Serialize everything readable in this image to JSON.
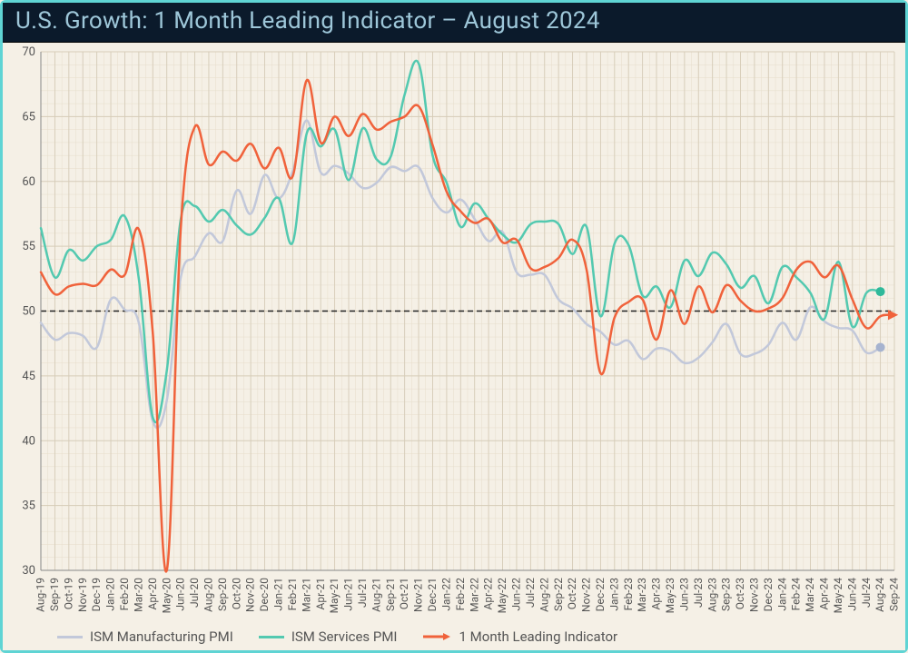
{
  "title": "U.S. Growth: 1 Month Leading Indicator – August 2024",
  "chart": {
    "type": "line",
    "background_color": "#f5f0e6",
    "frame_border_color": "#5fd4d4",
    "header_bg": "#0b1a2b",
    "header_fg": "#9ec7d9",
    "title_fontsize": 26,
    "grid_major_color": "#d6ccb8",
    "grid_minor_color": "#e6ddcb",
    "axis_color": "#888888",
    "tick_label_color": "#555555",
    "tick_fontsize_y": 13,
    "tick_fontsize_x": 12,
    "ylim": [
      30,
      70
    ],
    "ytick_step": 5,
    "reference_line": {
      "y": 50,
      "style": "dashed",
      "color": "#222222",
      "width": 1.5
    },
    "x_labels": [
      "Aug-19",
      "Sep-19",
      "Oct-19",
      "Nov-19",
      "Dec-19",
      "Jan-20",
      "Feb-20",
      "Mar-20",
      "Apr-20",
      "May-20",
      "Jun-20",
      "Jul-20",
      "Aug-20",
      "Sep-20",
      "Oct-20",
      "Nov-20",
      "Dec-20",
      "Jan-21",
      "Feb-21",
      "Mar-21",
      "Apr-21",
      "May-21",
      "Jun-21",
      "Jul-21",
      "Aug-21",
      "Sep-21",
      "Oct-21",
      "Nov-21",
      "Dec-21",
      "Jan-22",
      "Feb-22",
      "Mar-22",
      "Apr-22",
      "May-22",
      "Jun-22",
      "Jul-22",
      "Aug-22",
      "Sep-22",
      "Oct-22",
      "Nov-22",
      "Dec-22",
      "Jan-23",
      "Feb-23",
      "Mar-23",
      "Apr-23",
      "May-23",
      "Jun-23",
      "Jul-23",
      "Aug-23",
      "Sep-23",
      "Oct-23",
      "Nov-23",
      "Dec-23",
      "Jan-24",
      "Feb-24",
      "Mar-24",
      "Apr-24",
      "May-24",
      "Jun-24",
      "Jul-24",
      "Aug-24",
      "Sep-24"
    ],
    "series": [
      {
        "name": "ISM Manufacturing PMI",
        "color": "#c2c8da",
        "line_width": 2.5,
        "end_marker": {
          "shape": "circle",
          "size": 5,
          "fill": "#a6b3cf"
        },
        "values": [
          49.1,
          47.8,
          48.3,
          48.1,
          47.2,
          50.9,
          50.1,
          49.1,
          41.5,
          43.1,
          52.6,
          54.2,
          56.0,
          55.4,
          59.3,
          57.5,
          60.5,
          58.7,
          60.8,
          64.7,
          60.7,
          61.2,
          60.6,
          59.5,
          59.9,
          61.1,
          60.8,
          61.1,
          58.7,
          57.6,
          58.6,
          57.1,
          55.4,
          56.1,
          53.0,
          52.8,
          52.8,
          50.9,
          50.2,
          49.0,
          48.4,
          47.4,
          47.7,
          46.3,
          47.1,
          46.9,
          46.0,
          46.4,
          47.6,
          49.0,
          46.7,
          46.7,
          47.4,
          49.1,
          47.8,
          50.3,
          49.2,
          48.7,
          48.5,
          46.8,
          47.2,
          null
        ]
      },
      {
        "name": "ISM Services PMI",
        "color": "#53c9b0",
        "line_width": 2.5,
        "end_marker": {
          "shape": "circle",
          "size": 5,
          "fill": "#2fb99a"
        },
        "values": [
          56.4,
          52.6,
          54.7,
          53.9,
          55.0,
          55.5,
          57.3,
          52.5,
          41.8,
          45.4,
          57.1,
          58.1,
          56.9,
          57.8,
          56.6,
          55.9,
          57.2,
          58.7,
          55.3,
          63.7,
          62.7,
          64.0,
          60.1,
          64.1,
          61.7,
          61.9,
          66.7,
          69.1,
          62.0,
          59.9,
          56.5,
          58.3,
          57.1,
          55.9,
          55.3,
          56.7,
          56.9,
          56.7,
          54.4,
          56.5,
          49.6,
          55.2,
          55.1,
          51.2,
          51.9,
          50.3,
          53.9,
          52.7,
          54.5,
          53.6,
          51.8,
          52.7,
          50.6,
          53.4,
          52.6,
          51.4,
          49.4,
          53.8,
          48.8,
          51.4,
          51.5,
          null
        ]
      },
      {
        "name": "1 Month Leading Indicator",
        "color": "#f0623b",
        "line_width": 2.5,
        "end_marker": {
          "shape": "arrow",
          "size": 7,
          "fill": "#f0623b"
        },
        "values": [
          53.0,
          51.3,
          51.9,
          52.1,
          52.0,
          53.2,
          52.8,
          56.3,
          48.3,
          30.0,
          56.4,
          64.2,
          61.3,
          62.3,
          61.6,
          62.9,
          61.0,
          62.6,
          60.4,
          67.8,
          63.0,
          65.0,
          63.5,
          65.2,
          64.0,
          64.6,
          65.0,
          65.8,
          62.8,
          59.2,
          57.7,
          56.8,
          57.1,
          55.3,
          55.5,
          53.3,
          53.4,
          54.1,
          55.5,
          53.2,
          45.2,
          49.5,
          50.7,
          50.9,
          47.8,
          51.6,
          49.0,
          51.9,
          49.9,
          52.0,
          50.8,
          50.0,
          50.2,
          51.0,
          53.2,
          53.8,
          52.6,
          53.5,
          50.9,
          48.7,
          49.6,
          49.7
        ]
      }
    ],
    "legend": {
      "position": "bottom-left",
      "fontsize": 15,
      "text_color": "#555555",
      "items": [
        {
          "label": "ISM Manufacturing PMI",
          "color": "#c2c8da",
          "style": "line"
        },
        {
          "label": "ISM Services PMI",
          "color": "#53c9b0",
          "style": "line"
        },
        {
          "label": "1 Month Leading Indicator",
          "color": "#f0623b",
          "style": "line-arrow"
        }
      ]
    }
  }
}
